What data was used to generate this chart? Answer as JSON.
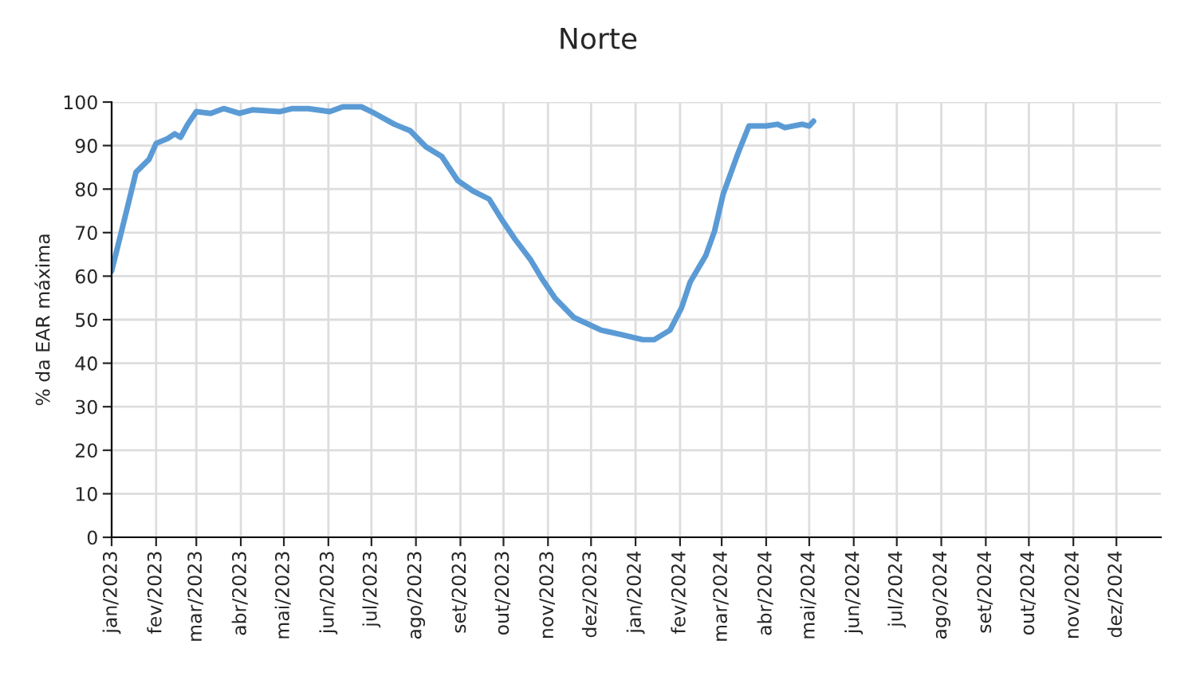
{
  "chart_data": {
    "type": "line",
    "title": "Norte",
    "ylabel": "% da EAR máxima",
    "x": [
      "2023-01-01",
      "2023-01-06",
      "2023-01-12",
      "2023-01-18",
      "2023-01-27",
      "2023-02-01",
      "2023-02-09",
      "2023-02-14",
      "2023-02-18",
      "2023-02-23",
      "2023-03-01",
      "2023-03-11",
      "2023-03-20",
      "2023-03-31",
      "2023-04-09",
      "2023-04-28",
      "2023-05-07",
      "2023-05-18",
      "2023-06-02",
      "2023-06-11",
      "2023-06-24",
      "2023-07-01",
      "2023-07-17",
      "2023-07-28",
      "2023-08-08",
      "2023-08-19",
      "2023-08-30",
      "2023-09-10",
      "2023-09-21",
      "2023-09-30",
      "2023-10-09",
      "2023-10-20",
      "2023-10-28",
      "2023-11-06",
      "2023-11-19",
      "2023-12-08",
      "2023-12-23",
      "2024-01-06",
      "2024-01-14",
      "2024-01-25",
      "2024-02-02",
      "2024-02-08",
      "2024-02-19",
      "2024-02-25",
      "2024-03-02",
      "2024-03-12",
      "2024-03-20",
      "2024-04-01",
      "2024-04-09",
      "2024-04-14",
      "2024-04-26",
      "2024-05-01",
      "2024-05-04"
    ],
    "series": [
      {
        "color": "#5b9bd5",
        "values": [
          61.2,
          67.8,
          75.8,
          83.9,
          86.8,
          90.5,
          91.6,
          92.7,
          91.9,
          94.9,
          97.8,
          97.4,
          98.5,
          97.4,
          98.2,
          97.8,
          98.5,
          98.5,
          97.8,
          98.9,
          98.9,
          97.8,
          94.9,
          93.4,
          89.7,
          87.5,
          82,
          79.5,
          77.7,
          72.9,
          68.5,
          63.7,
          59.3,
          54.9,
          50.5,
          47.6,
          46.5,
          45.4,
          45.4,
          47.6,
          52.7,
          58.6,
          64.8,
          70.3,
          78.8,
          87.9,
          94.5,
          94.5,
          94.9,
          94.1,
          94.9,
          94.5,
          95.6
        ]
      }
    ],
    "xlim": [
      "2023-01-01",
      "2025-01-01"
    ],
    "xticks": [
      {
        "value": "2023-01-01",
        "label": "jan/2023"
      },
      {
        "value": "2023-02-01",
        "label": "fev/2023"
      },
      {
        "value": "2023-03-01",
        "label": "mar/2023"
      },
      {
        "value": "2023-04-01",
        "label": "abr/2023"
      },
      {
        "value": "2023-05-01",
        "label": "mai/2023"
      },
      {
        "value": "2023-06-01",
        "label": "jun/2023"
      },
      {
        "value": "2023-07-01",
        "label": "jul/2023"
      },
      {
        "value": "2023-08-01",
        "label": "ago/2023"
      },
      {
        "value": "2023-09-01",
        "label": "set/2023"
      },
      {
        "value": "2023-10-01",
        "label": "out/2023"
      },
      {
        "value": "2023-11-01",
        "label": "nov/2023"
      },
      {
        "value": "2023-12-01",
        "label": "dez/2023"
      },
      {
        "value": "2024-01-01",
        "label": "jan/2024"
      },
      {
        "value": "2024-02-01",
        "label": "fev/2024"
      },
      {
        "value": "2024-03-01",
        "label": "mar/2024"
      },
      {
        "value": "2024-04-01",
        "label": "abr/2024"
      },
      {
        "value": "2024-05-01",
        "label": "mai/2024"
      },
      {
        "value": "2024-06-01",
        "label": "jun/2024"
      },
      {
        "value": "2024-07-01",
        "label": "jul/2024"
      },
      {
        "value": "2024-08-01",
        "label": "ago/2024"
      },
      {
        "value": "2024-09-01",
        "label": "set/2024"
      },
      {
        "value": "2024-10-01",
        "label": "out/2024"
      },
      {
        "value": "2024-11-01",
        "label": "nov/2024"
      },
      {
        "value": "2024-12-01",
        "label": "dez/2024"
      }
    ],
    "ylim": [
      0,
      100
    ],
    "yticks": [
      0,
      10,
      20,
      30,
      40,
      50,
      60,
      70,
      80,
      90,
      100
    ],
    "grid": true,
    "line_style": "solid",
    "marker": "none"
  }
}
